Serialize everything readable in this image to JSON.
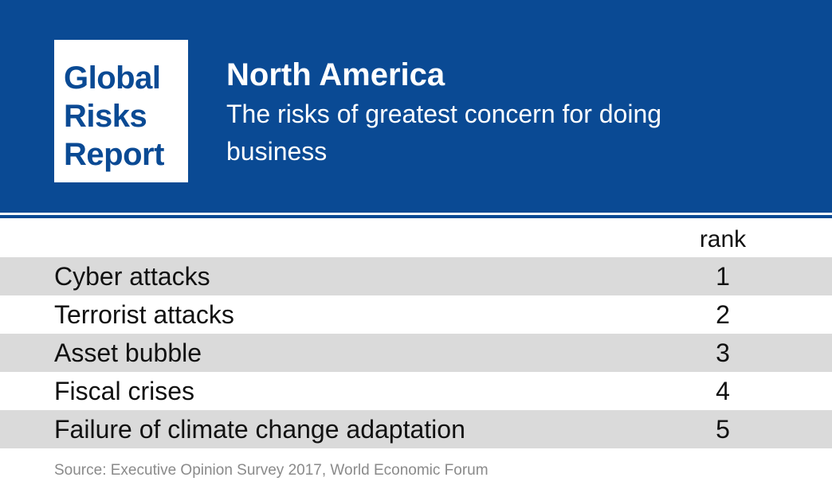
{
  "logo": {
    "line1": "Global",
    "line2": "Risks",
    "line3": "Report"
  },
  "header": {
    "title": "North America",
    "subtitle": "The risks of greatest concern for doing business"
  },
  "table": {
    "rank_header": "rank",
    "rows": [
      {
        "label": "Cyber attacks",
        "rank": "1"
      },
      {
        "label": "Terrorist attacks",
        "rank": "2"
      },
      {
        "label": "Asset bubble",
        "rank": "3"
      },
      {
        "label": "Fiscal crises",
        "rank": "4"
      },
      {
        "label": "Failure of climate change adaptation",
        "rank": "5"
      }
    ]
  },
  "source": "Source: Executive Opinion Survey 2017, World Economic Forum",
  "colors": {
    "brand_blue": "#0a4a94",
    "row_shade": "#dadada"
  }
}
